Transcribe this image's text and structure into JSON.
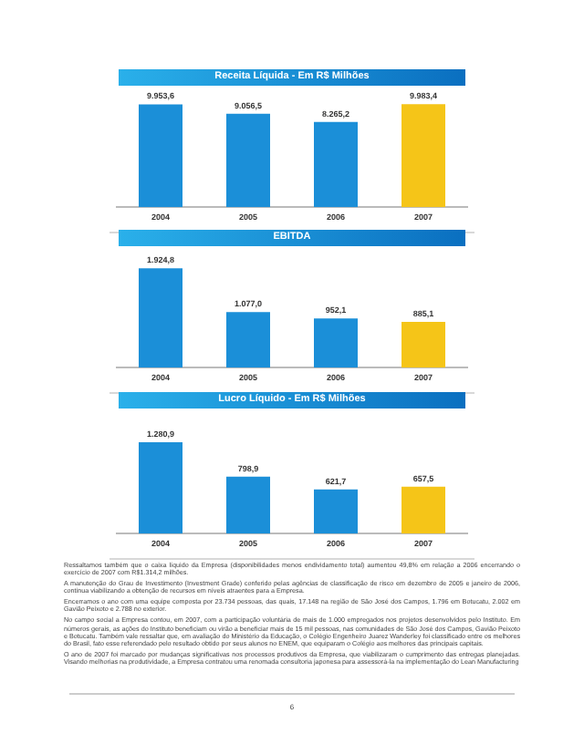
{
  "chart_data": [
    {
      "type": "bar",
      "title": "Receita Líquida - Em R$ Milhões",
      "categories": [
        "2004",
        "2005",
        "2006",
        "2007"
      ],
      "values": [
        9953.6,
        9056.5,
        8265.2,
        9983.4
      ],
      "value_labels": [
        "9.953,6",
        "9.056,5",
        "8.265,2",
        "9.983,4"
      ],
      "colors": [
        "#1b8fd8",
        "#1b8fd8",
        "#1b8fd8",
        "#f5c518"
      ]
    },
    {
      "type": "bar",
      "title": "EBITDA",
      "categories": [
        "2004",
        "2005",
        "2006",
        "2007"
      ],
      "values": [
        1924.8,
        1077.0,
        952.1,
        885.1
      ],
      "value_labels": [
        "1.924,8",
        "1.077,0",
        "952,1",
        "885,1"
      ],
      "colors": [
        "#1b8fd8",
        "#1b8fd8",
        "#1b8fd8",
        "#f5c518"
      ]
    },
    {
      "type": "bar",
      "title": "Lucro Líquido - Em R$ Milhões",
      "categories": [
        "2004",
        "2005",
        "2006",
        "2007"
      ],
      "values": [
        1280.9,
        798.9,
        621.7,
        657.5
      ],
      "value_labels": [
        "1.280,9",
        "798,9",
        "621,7",
        "657,5"
      ],
      "colors": [
        "#1b8fd8",
        "#1b8fd8",
        "#1b8fd8",
        "#f5c518"
      ],
      "annotations": [
        "Ressaltamos também que o caixa líquido da Empresa (disponibilidades menos endividamento total) aumentou 49,8% em relação a 2006 encerrando o exercício de 2007 com R$1.314,2 milhões.",
        "A manutenção do Grau de Investimento (Investment Grade) conferido pelas agências de classificação de risco em dezembro de 2005 e janeiro de 2006, continua viabilizando a obtenção de recursos em níveis atraentes para a Empresa.",
        "Encerramos o ano com uma equipe composta por 23.734 pessoas, das quais, 17.148 na região de São José dos Campos, 1.796 em Botucatu, 2.002 em Gavião Peixoto e 2.788 no exterior.",
        "No campo social a Empresa contou, em 2007, com a participação voluntária de mais de 1.000 empregados nos projetos desenvolvidos pelo Instituto. Em números gerais, as ações do Instituto beneficiam ou virão a beneficiar mais de 15 mil pessoas, nas comunidades de São José dos Campos, Gavião Peixoto e Botucatu. Também vale ressaltar que, em avaliação do Ministério da Educação, o Colégio Engenheiro Juarez Wanderley foi classificado entre os melhores do Brasil, fato esse referendado pelo resultado obtido por seus alunos no ENEM, que equiparam o Colégio aos melhores das principais capitais.",
        "O ano de 2007 foi marcado por mudanças significativas nos processos produtivos da Empresa, que viabilizaram o cumprimento das entregas planejadas. Visando melhorias na produtividade, a Empresa contratou uma renomada consultoria japonesa para assessorá-la na implementação do Lean Manufacturing",
        "6"
      ]
    }
  ]
}
